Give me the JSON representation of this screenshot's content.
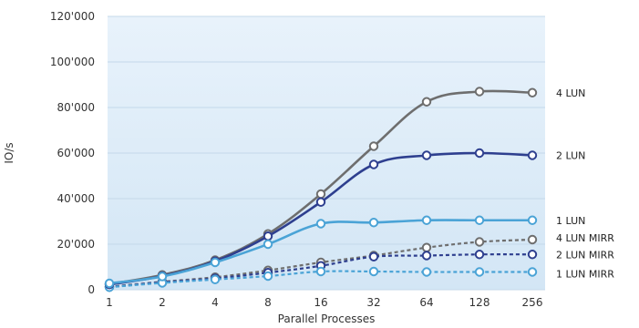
{
  "chart_data": {
    "type": "line",
    "title": "",
    "xlabel": "Parallel Processes",
    "ylabel": "IO/s",
    "categories": [
      "1",
      "2",
      "4",
      "8",
      "16",
      "32",
      "64",
      "128",
      "256"
    ],
    "ylim": [
      0,
      120000
    ],
    "yticks": [
      0,
      20000,
      40000,
      60000,
      80000,
      100000,
      120000
    ],
    "ytick_labels": [
      "0",
      "20'000",
      "40'000",
      "60'000",
      "80'000",
      "100'000",
      "120'000"
    ],
    "grid": true,
    "plot_background": "#e3f0fa",
    "legend": "inline labels at right end of each line",
    "series": [
      {
        "name": "4 LUN",
        "style": "solid",
        "color": "#6e6e6e",
        "values": [
          2500,
          6500,
          13000,
          24500,
          42000,
          63000,
          82500,
          87000,
          86500
        ]
      },
      {
        "name": "2 LUN",
        "style": "solid",
        "color": "#2e3f8f",
        "values": [
          2300,
          6000,
          12500,
          23500,
          38500,
          55000,
          59000,
          60000,
          59000
        ]
      },
      {
        "name": "1 LUN",
        "style": "solid",
        "color": "#4aa3d6",
        "values": [
          2800,
          5800,
          12000,
          20000,
          29000,
          29500,
          30500,
          30500,
          30500
        ]
      },
      {
        "name": "4 LUN MIRR",
        "style": "dashed",
        "color": "#6e6e6e",
        "values": [
          1300,
          3500,
          5500,
          8500,
          12000,
          15000,
          18500,
          21000,
          22000
        ]
      },
      {
        "name": "2 LUN MIRR",
        "style": "dashed",
        "color": "#2e3f8f",
        "values": [
          1200,
          3300,
          5000,
          7500,
          10500,
          14500,
          15000,
          15500,
          15500
        ]
      },
      {
        "name": "1 LUN MIRR",
        "style": "dashed",
        "color": "#4aa3d6",
        "values": [
          1100,
          3000,
          4500,
          6000,
          8000,
          8000,
          7800,
          7800,
          7800
        ]
      }
    ]
  }
}
